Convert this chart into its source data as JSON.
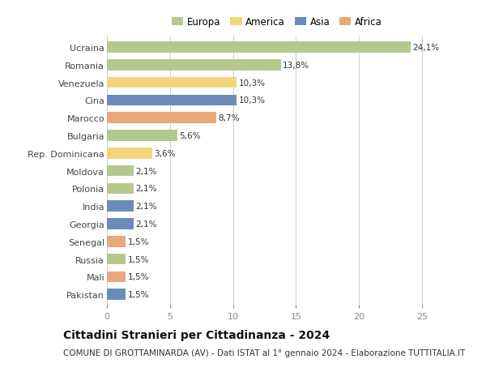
{
  "countries": [
    "Pakistan",
    "Mali",
    "Russia",
    "Senegal",
    "Georgia",
    "India",
    "Polonia",
    "Moldova",
    "Rep. Dominicana",
    "Bulgaria",
    "Marocco",
    "Cina",
    "Venezuela",
    "Romania",
    "Ucraina"
  ],
  "values": [
    1.5,
    1.5,
    1.5,
    1.5,
    2.1,
    2.1,
    2.1,
    2.1,
    3.6,
    5.6,
    8.7,
    10.3,
    10.3,
    13.8,
    24.1
  ],
  "labels": [
    "1,5%",
    "1,5%",
    "1,5%",
    "1,5%",
    "2,1%",
    "2,1%",
    "2,1%",
    "2,1%",
    "3,6%",
    "5,6%",
    "8,7%",
    "10,3%",
    "10,3%",
    "13,8%",
    "24,1%"
  ],
  "continents": [
    "Asia",
    "Africa",
    "Europa",
    "Africa",
    "Asia",
    "Asia",
    "Europa",
    "Europa",
    "America",
    "Europa",
    "Africa",
    "Asia",
    "America",
    "Europa",
    "Europa"
  ],
  "colors": {
    "Europa": "#b5c98e",
    "America": "#f5d47e",
    "Asia": "#6b8cba",
    "Africa": "#e8a87c"
  },
  "legend_order": [
    "Europa",
    "America",
    "Asia",
    "Africa"
  ],
  "title": "Cittadini Stranieri per Cittadinanza - 2024",
  "subtitle": "COMUNE DI GROTTAMINARDA (AV) - Dati ISTAT al 1° gennaio 2024 - Elaborazione TUTTITALIA.IT",
  "xlim": [
    0,
    27
  ],
  "xticks": [
    0,
    5,
    10,
    15,
    20,
    25
  ],
  "bg_color": "#ffffff",
  "grid_color": "#cccccc",
  "bar_height": 0.62,
  "title_fontsize": 10,
  "subtitle_fontsize": 7.5,
  "label_fontsize": 7.5,
  "tick_fontsize": 8,
  "legend_fontsize": 8.5
}
